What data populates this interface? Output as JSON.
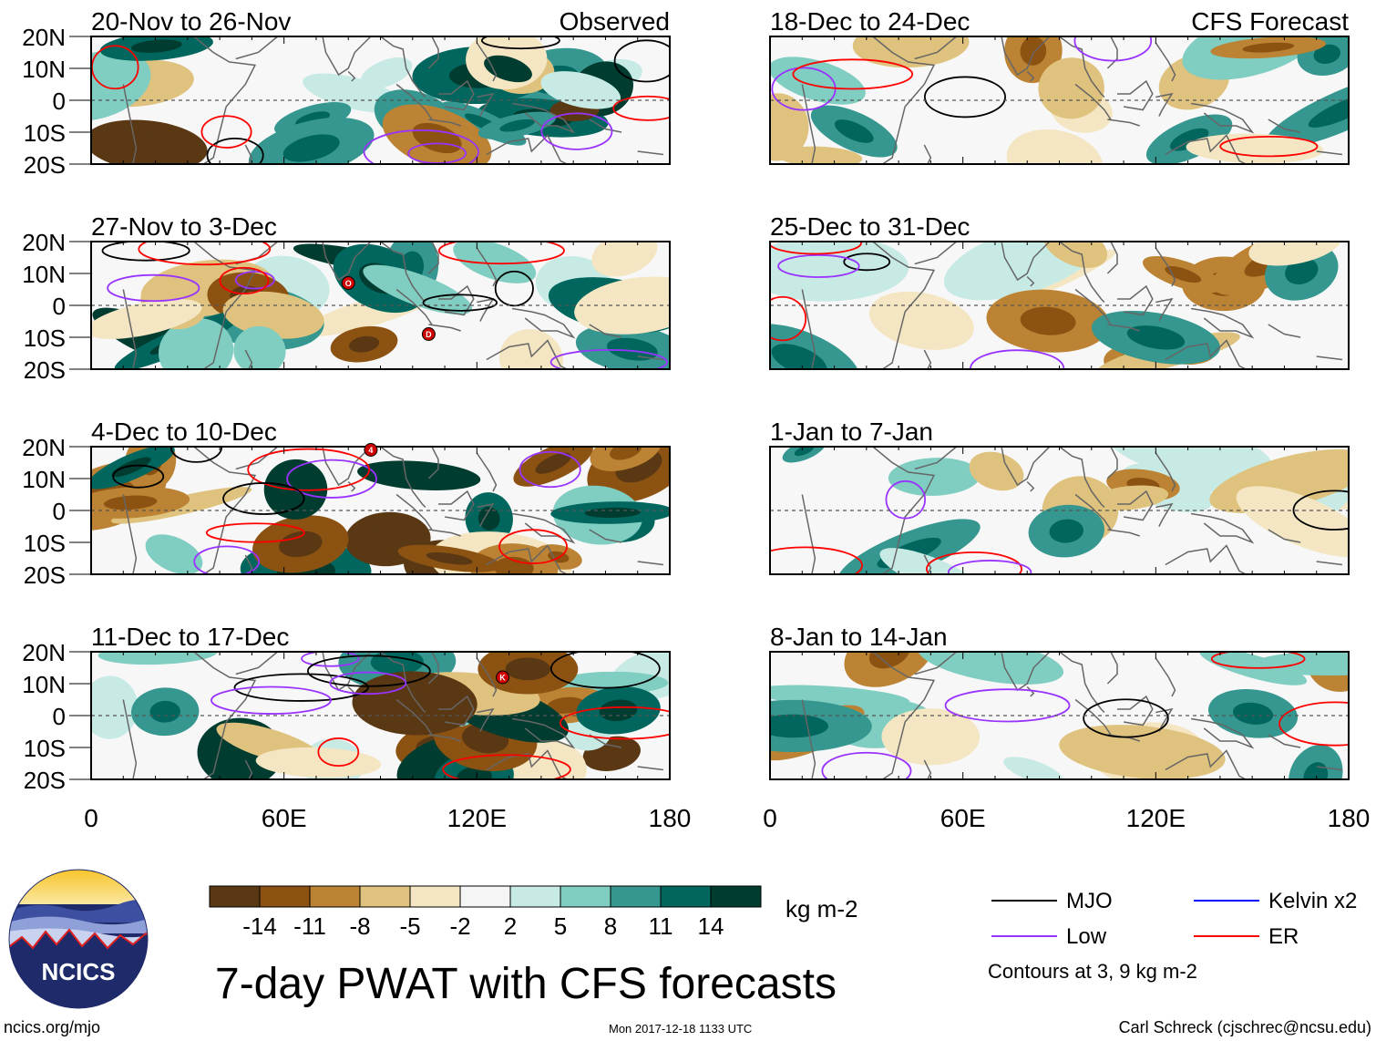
{
  "title": "7-day PWAT with CFS forecasts",
  "site": "ncics.org/mjo",
  "timestamp": "Mon 2017-12-18 1133 UTC",
  "author": "Carl Schreck (cjschrec@ncsu.edu)",
  "logo_text": "NCICS",
  "units": "kg m-2",
  "contour_note": "Contours at 3, 9 kg m-2",
  "label_observed": "Observed",
  "label_forecast": "CFS Forecast",
  "lat_ticks": [
    "20N",
    "10N",
    "0",
    "10S",
    "20S"
  ],
  "lon_ticks": [
    "0",
    "60E",
    "120E",
    "180"
  ],
  "colorbar": {
    "colors": [
      "#593813",
      "#8c5212",
      "#bb8333",
      "#dfc27d",
      "#f4e6c2",
      "#f5f5f5",
      "#c7eae5",
      "#80cdc1",
      "#35978f",
      "#01665e",
      "#003c30"
    ],
    "labels": [
      "-14",
      "-11",
      "-8",
      "-5",
      "-2",
      "2",
      "5",
      "8",
      "11",
      "14"
    ]
  },
  "legend": [
    {
      "name": "MJO",
      "color": "#000000"
    },
    {
      "name": "Kelvin x2",
      "color": "#0000ff"
    },
    {
      "name": "Low",
      "color": "#9933ff"
    },
    {
      "name": "ER",
      "color": "#ff0000"
    }
  ],
  "panels": [
    {
      "title": "20-Nov to 26-Nov",
      "column": "observed",
      "seed": 11
    },
    {
      "title": "27-Nov to 3-Dec",
      "column": "observed",
      "seed": 23
    },
    {
      "title": "4-Dec to 10-Dec",
      "column": "observed",
      "seed": 37
    },
    {
      "title": "11-Dec to 17-Dec",
      "column": "observed",
      "seed": 41
    },
    {
      "title": "18-Dec to 24-Dec",
      "column": "forecast",
      "seed": 53
    },
    {
      "title": "25-Dec to 31-Dec",
      "column": "forecast",
      "seed": 67
    },
    {
      "title": "1-Jan to 7-Jan",
      "column": "forecast",
      "seed": 71
    },
    {
      "title": "8-Jan to 14-Jan",
      "column": "forecast",
      "seed": 89
    }
  ],
  "storm_markers": [
    {
      "panel": 1,
      "label": "O",
      "lon": 80,
      "lat": 7
    },
    {
      "panel": 1,
      "label": "D",
      "lon": 105,
      "lat": -9
    },
    {
      "panel": 2,
      "label": "4",
      "lon": 87,
      "lat": 19
    },
    {
      "panel": 3,
      "label": "K",
      "lon": 128,
      "lat": 12
    }
  ]
}
